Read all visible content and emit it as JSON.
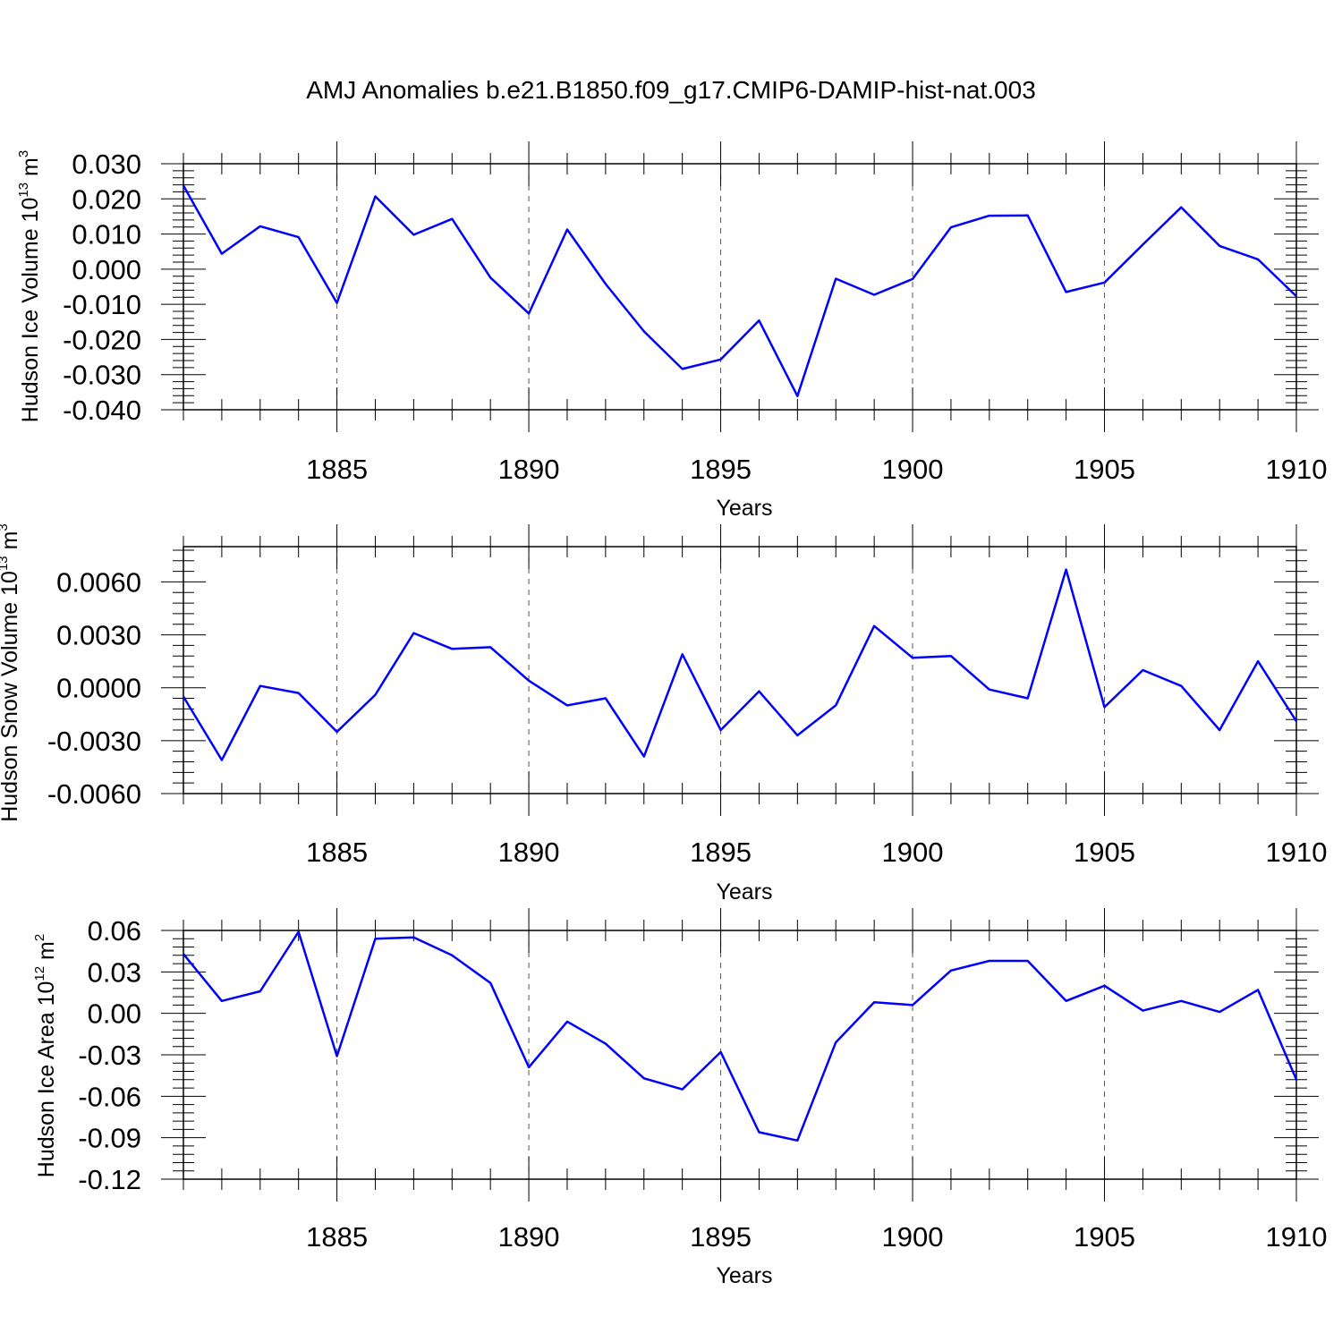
{
  "title": "AMJ Anomalies b.e21.B1850.f09_g17.CMIP6-DAMIP-hist-nat.003",
  "line_color": "#0000ff",
  "chart_data": [
    {
      "type": "line",
      "name": "ice-volume",
      "ylabel": "Hudson Ice Volume 10",
      "ylabel_sup": "13",
      "ylabel_unit": " m",
      "ylabel_unit_sup": "3",
      "xlabel": "Years",
      "xlim": [
        1881,
        1910
      ],
      "ylim": [
        -0.04,
        0.03
      ],
      "xticks": [
        1885,
        1890,
        1895,
        1900,
        1905,
        1910
      ],
      "xtick_labels": [
        "1885",
        "1890",
        "1895",
        "1900",
        "1905",
        "1910"
      ],
      "yticks": [
        0.03,
        0.02,
        0.01,
        0.0,
        -0.01,
        -0.02,
        -0.03,
        -0.04
      ],
      "ytick_labels": [
        "0.030",
        "0.020",
        "0.010",
        "0.000",
        "-0.010",
        "-0.020",
        "-0.030",
        "-0.040"
      ],
      "x": [
        1881,
        1882,
        1883,
        1884,
        1885,
        1886,
        1887,
        1888,
        1889,
        1890,
        1891,
        1892,
        1893,
        1894,
        1895,
        1896,
        1897,
        1898,
        1899,
        1900,
        1901,
        1902,
        1903,
        1904,
        1905,
        1906,
        1907,
        1908,
        1909,
        1910
      ],
      "values": [
        0.0238,
        0.0044,
        0.0122,
        0.0091,
        -0.0096,
        0.0207,
        0.0098,
        0.0143,
        -0.0024,
        -0.0126,
        0.0113,
        -0.0042,
        -0.0177,
        -0.0284,
        -0.0257,
        -0.0146,
        -0.0361,
        -0.0027,
        -0.0073,
        -0.0028,
        0.0119,
        0.0152,
        0.0153,
        -0.0065,
        -0.0038,
        0.007,
        0.0176,
        0.0066,
        0.0028,
        -0.0077
      ]
    },
    {
      "type": "line",
      "name": "snow-volume",
      "ylabel": "Hudson Snow Volume 10",
      "ylabel_sup": "13",
      "ylabel_unit": " m",
      "ylabel_unit_sup": "3",
      "xlabel": "Years",
      "xlim": [
        1881,
        1910
      ],
      "ylim": [
        -0.006,
        0.008
      ],
      "xticks": [
        1885,
        1890,
        1895,
        1900,
        1905,
        1910
      ],
      "xtick_labels": [
        "1885",
        "1890",
        "1895",
        "1900",
        "1905",
        "1910"
      ],
      "yticks": [
        0.006,
        0.003,
        0.0,
        -0.003,
        -0.006
      ],
      "ytick_labels": [
        "0.0060",
        "0.0030",
        "0.0000",
        "-0.0030",
        "-0.0060"
      ],
      "x": [
        1881,
        1882,
        1883,
        1884,
        1885,
        1886,
        1887,
        1888,
        1889,
        1890,
        1891,
        1892,
        1893,
        1894,
        1895,
        1896,
        1897,
        1898,
        1899,
        1900,
        1901,
        1902,
        1903,
        1904,
        1905,
        1906,
        1907,
        1908,
        1909,
        1910
      ],
      "values": [
        -0.0005,
        -0.0041,
        0.0001,
        -0.0003,
        -0.0025,
        -0.0004,
        0.0031,
        0.0022,
        0.0023,
        0.0004,
        -0.001,
        -0.0006,
        -0.0039,
        0.0019,
        -0.0024,
        -0.0002,
        -0.0027,
        -0.001,
        0.0035,
        0.0017,
        0.0018,
        -0.0001,
        -0.0006,
        0.0067,
        -0.0011,
        0.001,
        0.0001,
        -0.0024,
        0.0015,
        -0.0019
      ]
    },
    {
      "type": "line",
      "name": "ice-area",
      "ylabel": "Hudson Ice Area 10",
      "ylabel_sup": "12",
      "ylabel_unit": " m",
      "ylabel_unit_sup": "2",
      "xlabel": "Years",
      "xlim": [
        1881,
        1910
      ],
      "ylim": [
        -0.12,
        0.06
      ],
      "xticks": [
        1885,
        1890,
        1895,
        1900,
        1905,
        1910
      ],
      "xtick_labels": [
        "1885",
        "1890",
        "1895",
        "1900",
        "1905",
        "1910"
      ],
      "yticks": [
        0.06,
        0.03,
        0.0,
        -0.03,
        -0.06,
        -0.09,
        -0.12
      ],
      "ytick_labels": [
        "0.06",
        "0.03",
        "0.00",
        "-0.03",
        "-0.06",
        "-0.09",
        "-0.12"
      ],
      "x": [
        1881,
        1882,
        1883,
        1884,
        1885,
        1886,
        1887,
        1888,
        1889,
        1890,
        1891,
        1892,
        1893,
        1894,
        1895,
        1896,
        1897,
        1898,
        1899,
        1900,
        1901,
        1902,
        1903,
        1904,
        1905,
        1906,
        1907,
        1908,
        1909,
        1910
      ],
      "values": [
        0.043,
        0.009,
        0.016,
        0.059,
        -0.031,
        0.054,
        0.055,
        0.042,
        0.022,
        -0.039,
        -0.006,
        -0.022,
        -0.047,
        -0.055,
        -0.028,
        -0.086,
        -0.092,
        -0.021,
        0.008,
        0.006,
        0.031,
        0.038,
        0.038,
        0.009,
        0.02,
        0.002,
        0.009,
        0.001,
        0.017,
        -0.048
      ]
    }
  ]
}
